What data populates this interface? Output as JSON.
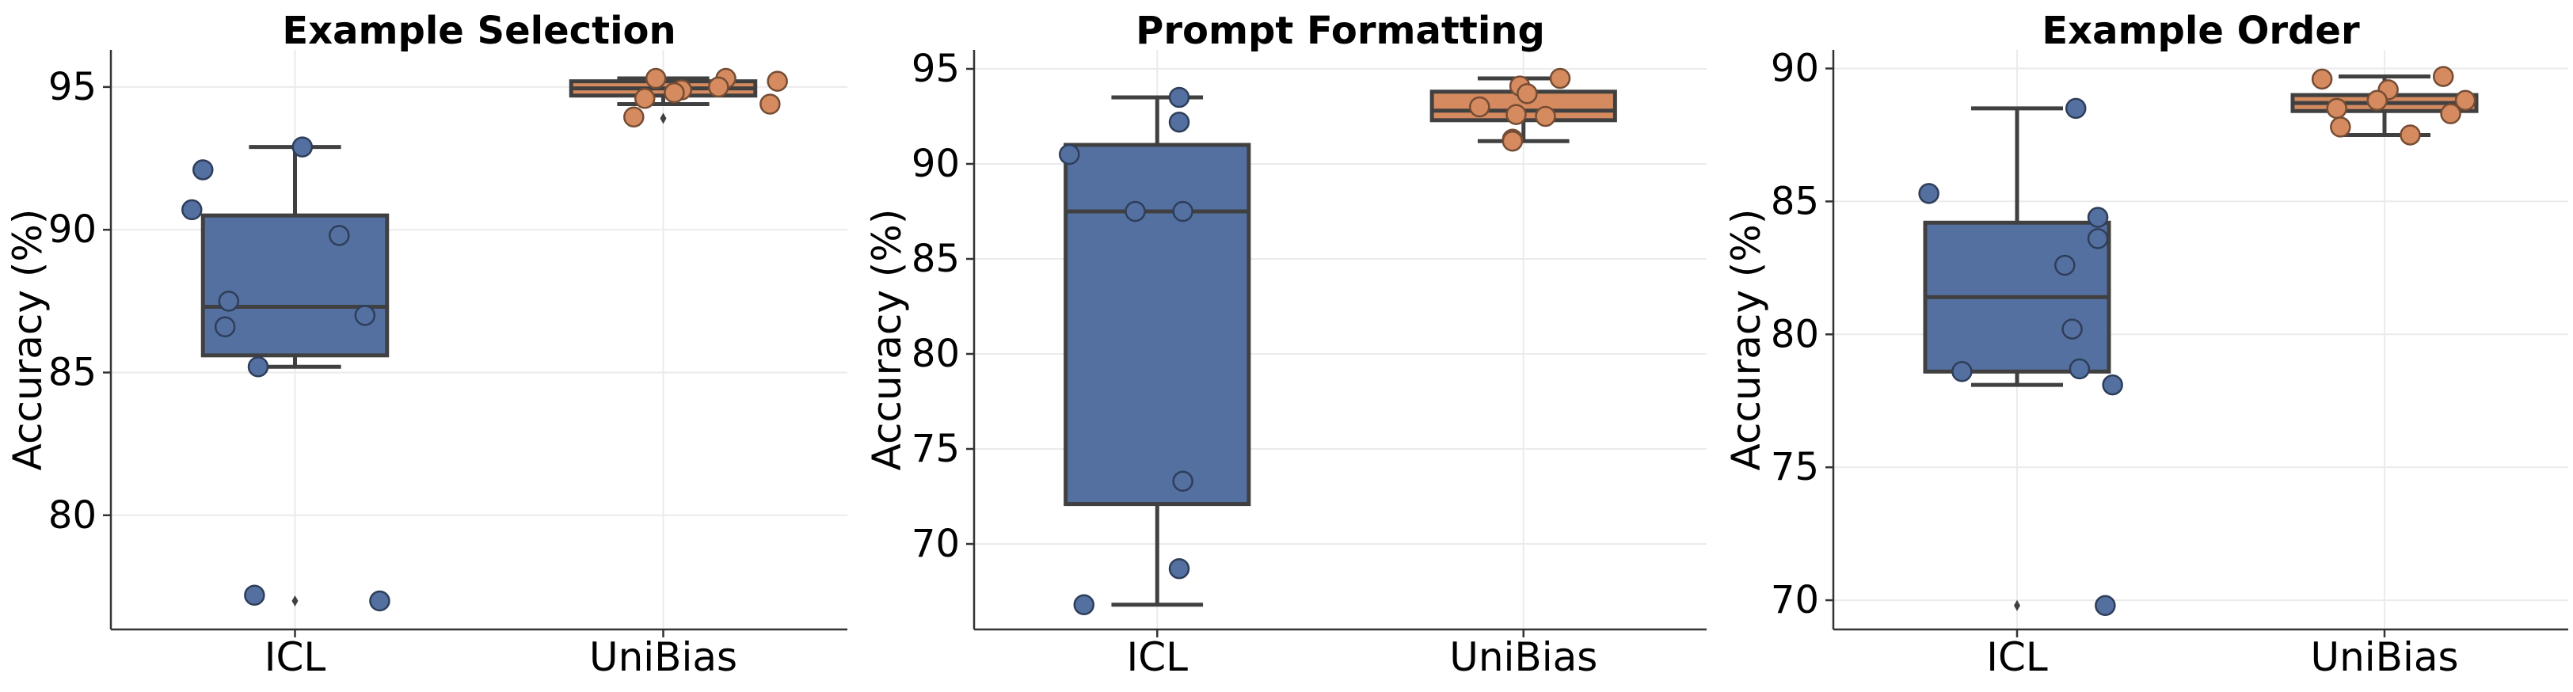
{
  "chart_data": [
    {
      "type": "box",
      "title": "Example Selection",
      "ylabel": "Accuracy (%)",
      "categories": [
        "ICL",
        "UniBias"
      ],
      "ylim": [
        76,
        96.3
      ],
      "yticks": [
        80,
        85,
        90,
        95
      ],
      "grid": true,
      "boxes": [
        {
          "category": "ICL",
          "color": "#5470a1",
          "q1": 85.6,
          "median": 87.3,
          "q3": 90.5,
          "whisker_low": 85.2,
          "whisker_high": 92.9,
          "outliers": [
            77.0
          ]
        },
        {
          "category": "UniBias",
          "color": "#d58b5f",
          "q1": 94.7,
          "median": 94.95,
          "q3": 95.2,
          "whisker_low": 94.4,
          "whisker_high": 95.3,
          "outliers": [
            93.9
          ]
        }
      ],
      "points": [
        {
          "category": "ICL",
          "values": [
            92.9,
            92.1,
            90.7,
            89.8,
            87.5,
            87.0,
            86.6,
            85.2,
            77.2,
            77.0
          ],
          "offsets": [
            0.02,
            -0.25,
            -0.28,
            0.12,
            -0.18,
            0.19,
            -0.19,
            -0.1,
            -0.11,
            0.23
          ]
        },
        {
          "category": "UniBias",
          "values": [
            95.3,
            95.3,
            95.2,
            95.0,
            94.9,
            94.8,
            94.6,
            94.4,
            93.95
          ],
          "offsets": [
            -0.02,
            0.17,
            0.31,
            0.15,
            0.05,
            0.03,
            -0.05,
            0.29,
            -0.08
          ]
        }
      ]
    },
    {
      "type": "box",
      "title": "Prompt Formatting",
      "ylabel": "Accuracy (%)",
      "categories": [
        "ICL",
        "UniBias"
      ],
      "ylim": [
        65.5,
        96
      ],
      "yticks": [
        70,
        75,
        80,
        85,
        90,
        95
      ],
      "grid": true,
      "boxes": [
        {
          "category": "ICL",
          "color": "#5470a1",
          "q1": 72.1,
          "median": 87.5,
          "q3": 91.0,
          "whisker_low": 66.8,
          "whisker_high": 93.5,
          "outliers": []
        },
        {
          "category": "UniBias",
          "color": "#d58b5f",
          "q1": 92.3,
          "median": 92.8,
          "q3": 93.8,
          "whisker_low": 91.2,
          "whisker_high": 94.5,
          "outliers": []
        }
      ],
      "points": [
        {
          "category": "ICL",
          "values": [
            93.5,
            92.2,
            90.5,
            87.5,
            87.5,
            73.3,
            68.7,
            66.8
          ],
          "offsets": [
            0.06,
            0.06,
            -0.24,
            -0.06,
            0.07,
            0.07,
            0.06,
            -0.2
          ]
        },
        {
          "category": "UniBias",
          "values": [
            94.5,
            94.1,
            93.7,
            93.0,
            92.6,
            92.5,
            91.3,
            91.2
          ],
          "offsets": [
            0.1,
            -0.01,
            0.01,
            -0.12,
            -0.02,
            0.06,
            -0.03,
            -0.03
          ]
        }
      ]
    },
    {
      "type": "box",
      "title": "Example Order",
      "ylabel": "Accuracy (%)",
      "categories": [
        "ICL",
        "UniBias"
      ],
      "ylim": [
        68.9,
        90.7
      ],
      "yticks": [
        70,
        75,
        80,
        85,
        90
      ],
      "grid": true,
      "boxes": [
        {
          "category": "ICL",
          "color": "#5470a1",
          "q1": 78.6,
          "median": 81.4,
          "q3": 84.2,
          "whisker_low": 78.1,
          "whisker_high": 88.5,
          "outliers": [
            69.8
          ]
        },
        {
          "category": "UniBias",
          "color": "#d58b5f",
          "q1": 88.4,
          "median": 88.7,
          "q3": 89.0,
          "whisker_low": 87.5,
          "whisker_high": 89.7,
          "outliers": []
        }
      ],
      "points": [
        {
          "category": "ICL",
          "values": [
            88.5,
            85.3,
            84.4,
            83.6,
            82.6,
            80.2,
            78.7,
            78.6,
            78.1,
            69.8
          ],
          "offsets": [
            0.16,
            -0.24,
            0.22,
            0.22,
            0.13,
            0.15,
            0.17,
            -0.15,
            0.26,
            0.24
          ]
        },
        {
          "category": "UniBias",
          "values": [
            89.7,
            89.6,
            89.2,
            88.8,
            88.8,
            88.5,
            88.3,
            87.8,
            87.5
          ],
          "offsets": [
            0.16,
            -0.17,
            0.01,
            -0.02,
            0.22,
            -0.13,
            0.18,
            -0.12,
            0.07
          ]
        }
      ]
    }
  ]
}
